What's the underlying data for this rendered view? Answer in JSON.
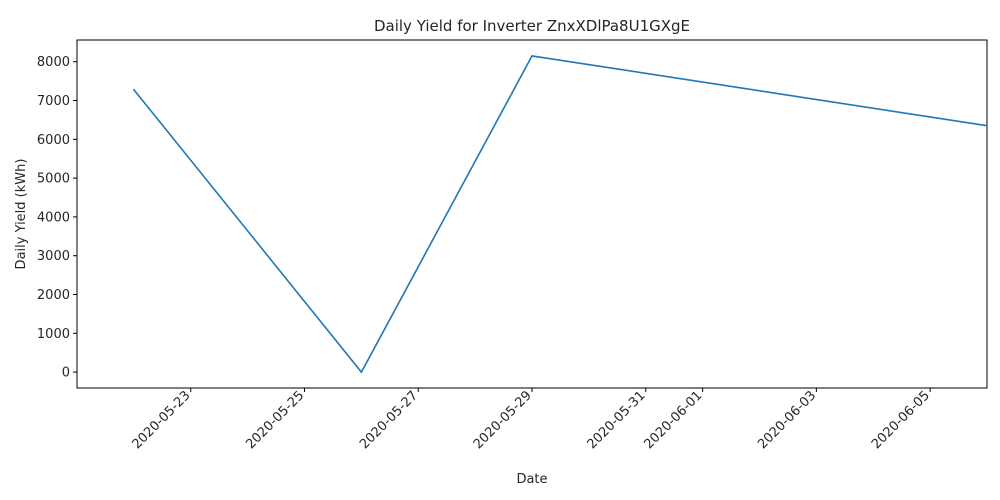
{
  "chart_data": {
    "type": "line",
    "title": "Daily Yield for Inverter ZnxXDlPa8U1GXgE",
    "xlabel": "Date",
    "ylabel": "Daily Yield (kWh)",
    "x_ticks": [
      "2020-05-23",
      "2020-05-25",
      "2020-05-27",
      "2020-05-29",
      "2020-05-31",
      "2020-06-01",
      "2020-06-03",
      "2020-06-05"
    ],
    "y_ticks": [
      0,
      1000,
      2000,
      3000,
      4000,
      5000,
      6000,
      7000,
      8000
    ],
    "xlim": [
      "2020-05-21",
      "2020-06-06"
    ],
    "ylim": [
      -410,
      8560
    ],
    "grid": false,
    "series": [
      {
        "color": "#1f77b4",
        "points": [
          {
            "x": "2020-05-22",
            "y": 7280
          },
          {
            "x": "2020-05-26",
            "y": 0
          },
          {
            "x": "2020-05-29",
            "y": 8150
          },
          {
            "x": "2020-06-06",
            "y": 6350
          }
        ]
      }
    ]
  }
}
